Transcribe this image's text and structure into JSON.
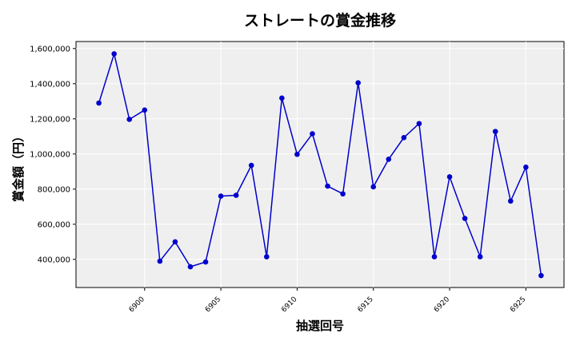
{
  "chart_data": {
    "type": "line",
    "title": "ストレートの賞金推移",
    "xlabel": "抽選回号",
    "ylabel": "賞金額（円）",
    "xlim": [
      6895.5,
      6927.5
    ],
    "ylim": [
      240000,
      1640000
    ],
    "x_ticks": [
      6900,
      6905,
      6910,
      6915,
      6920,
      6925
    ],
    "y_ticks": [
      400000,
      600000,
      800000,
      1000000,
      1200000,
      1400000,
      1600000
    ],
    "y_tick_labels": [
      "400,000",
      "600,000",
      "800,000",
      "1,000,000",
      "1,200,000",
      "1,400,000",
      "1,600,000"
    ],
    "grid": true,
    "series": [
      {
        "color": "#0000cc",
        "x": [
          6897,
          6898,
          6899,
          6900,
          6901,
          6902,
          6903,
          6904,
          6905,
          6906,
          6907,
          6908,
          6909,
          6910,
          6911,
          6912,
          6913,
          6914,
          6915,
          6916,
          6917,
          6918,
          6919,
          6920,
          6921,
          6922,
          6923,
          6924,
          6925,
          6926
        ],
        "y": [
          1290000,
          1570000,
          1197000,
          1250000,
          390000,
          500000,
          358000,
          385000,
          760000,
          765000,
          935000,
          415000,
          1318000,
          998000,
          1115000,
          817000,
          773000,
          1405000,
          813000,
          970000,
          1093000,
          1173000,
          415000,
          870000,
          633000,
          415000,
          1128000,
          732000,
          925000,
          308000
        ]
      }
    ]
  }
}
